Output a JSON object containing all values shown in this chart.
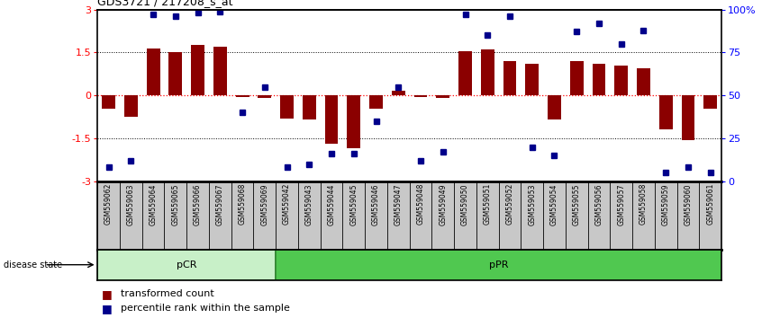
{
  "title": "GDS3721 / 217208_s_at",
  "samples": [
    "GSM559062",
    "GSM559063",
    "GSM559064",
    "GSM559065",
    "GSM559066",
    "GSM559067",
    "GSM559068",
    "GSM559069",
    "GSM559042",
    "GSM559043",
    "GSM559044",
    "GSM559045",
    "GSM559046",
    "GSM559047",
    "GSM559048",
    "GSM559049",
    "GSM559050",
    "GSM559051",
    "GSM559052",
    "GSM559053",
    "GSM559054",
    "GSM559055",
    "GSM559056",
    "GSM559057",
    "GSM559058",
    "GSM559059",
    "GSM559060",
    "GSM559061"
  ],
  "transformed_count": [
    -0.45,
    -0.75,
    1.65,
    1.5,
    1.75,
    1.7,
    -0.05,
    -0.1,
    -0.8,
    -0.85,
    -1.7,
    -1.85,
    -0.45,
    0.15,
    -0.05,
    -0.08,
    1.55,
    1.6,
    1.2,
    1.1,
    -0.85,
    1.2,
    1.1,
    1.05,
    0.95,
    -1.2,
    -1.55,
    -0.45
  ],
  "percentile_rank": [
    8,
    12,
    97,
    96,
    98,
    99,
    40,
    55,
    8,
    10,
    16,
    16,
    35,
    55,
    12,
    17,
    97,
    85,
    96,
    20,
    15,
    87,
    92,
    80,
    88,
    5,
    8,
    5
  ],
  "pCR_count": 8,
  "pPR_count": 20,
  "bar_color": "#8B0000",
  "dot_color": "#00008B",
  "pCR_facecolor": "#C8F0C8",
  "pPR_facecolor": "#50C850",
  "ylim": [
    -3.0,
    3.0
  ],
  "yticks": [
    -3,
    -1.5,
    0,
    1.5,
    3
  ],
  "ytick_labels_left": [
    "-3",
    "-1.5",
    "0",
    "1.5",
    "3"
  ],
  "ytick_labels_right": [
    "0",
    "25",
    "50",
    "75",
    "100%"
  ],
  "legend_items": [
    "transformed count",
    "percentile rank within the sample"
  ]
}
